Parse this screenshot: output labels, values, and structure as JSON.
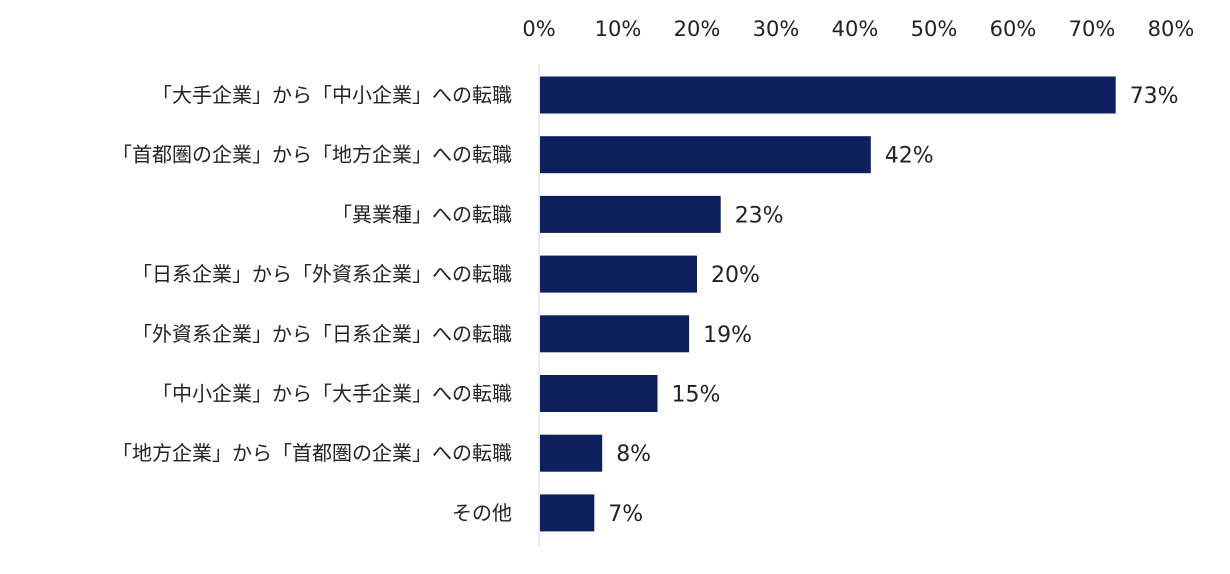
{
  "chart_data": {
    "type": "bar",
    "orientation": "horizontal",
    "categories": [
      "「大手企業」から「中小企業」への転職",
      "「首都圏の企業」から「地方企業」への転職",
      "「異業種」への転職",
      "「日系企業」から「外資系企業」への転職",
      "「外資系企業」から「日系企業」への転職",
      "「中小企業」から「大手企業」への転職",
      "「地方企業」から「首都圏の企業」への転職",
      "その他"
    ],
    "values": [
      73,
      42,
      23,
      20,
      19,
      15,
      8,
      7
    ],
    "value_labels": [
      "73%",
      "42%",
      "23%",
      "20%",
      "19%",
      "15%",
      "8%",
      "7%"
    ],
    "xlim": [
      0,
      80
    ],
    "x_ticks": [
      0,
      10,
      20,
      30,
      40,
      50,
      60,
      70,
      80
    ],
    "x_tick_labels": [
      "0%",
      "10%",
      "20%",
      "30%",
      "40%",
      "50%",
      "60%",
      "70%",
      "80%"
    ],
    "axis_position": "top",
    "grid": false,
    "legend": "none",
    "bar_color": "#0d1f5c",
    "axis_color": "#d9d9d9"
  }
}
